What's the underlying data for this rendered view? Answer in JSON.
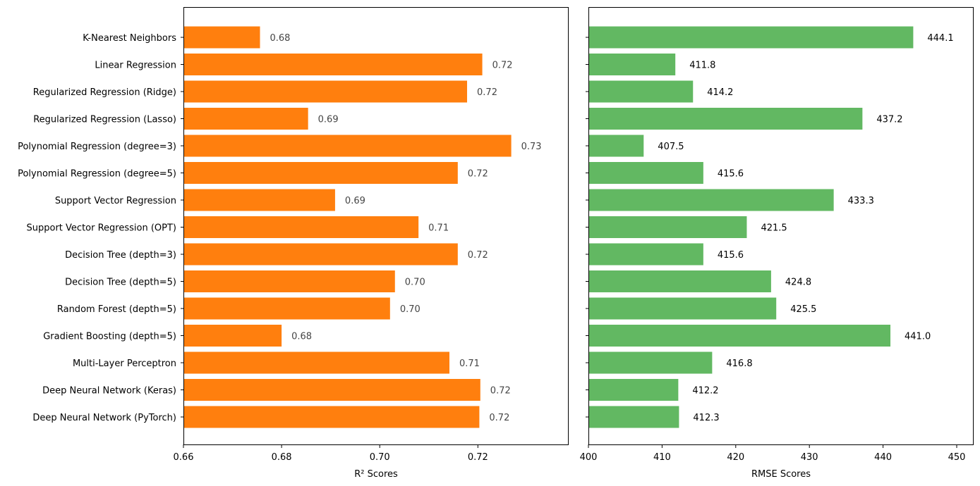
{
  "chart_data": [
    {
      "type": "bar",
      "orientation": "horizontal",
      "xlabel": "R² Scores",
      "ylabel": "",
      "xlim": [
        0.66,
        0.7385
      ],
      "xticks": [
        {
          "value": 0.66,
          "label": "0.66"
        },
        {
          "value": 0.68,
          "label": "0.68"
        },
        {
          "value": 0.7,
          "label": "0.70"
        },
        {
          "value": 0.72,
          "label": "0.72"
        }
      ],
      "bar_color": "#ff7f0e",
      "label_color": "#444444",
      "categories": [
        "K-Nearest Neighbors",
        "Linear Regression",
        "Regularized Regression (Ridge)",
        "Regularized Regression (Lasso)",
        "Polynomial Regression (degree=3)",
        "Polynomial Regression (degree=5)",
        "Support Vector Regression",
        "Support Vector Regression (OPT)",
        "Decision Tree (depth=3)",
        "Decision Tree (depth=5)",
        "Random Forest (depth=5)",
        "Gradient Boosting (depth=5)",
        "Multi-Layer Perceptron",
        "Deep Neural Network (Keras)",
        "Deep Neural Network (PyTorch)"
      ],
      "values": [
        0.6756,
        0.7209,
        0.7178,
        0.6854,
        0.7268,
        0.7159,
        0.6909,
        0.7079,
        0.7159,
        0.7031,
        0.7021,
        0.68,
        0.7142,
        0.7205,
        0.7203
      ],
      "data_labels": [
        "0.68",
        "0.72",
        "0.72",
        "0.69",
        "0.73",
        "0.72",
        "0.69",
        "0.71",
        "0.72",
        "0.70",
        "0.70",
        "0.68",
        "0.71",
        "0.72",
        "0.72"
      ]
    },
    {
      "type": "bar",
      "orientation": "horizontal",
      "xlabel": "RMSE Scores",
      "ylabel": "",
      "xlim": [
        400,
        452.3
      ],
      "xticks": [
        {
          "value": 400,
          "label": "400"
        },
        {
          "value": 410,
          "label": "410"
        },
        {
          "value": 420,
          "label": "420"
        },
        {
          "value": 430,
          "label": "430"
        },
        {
          "value": 440,
          "label": "440"
        },
        {
          "value": 450,
          "label": "450"
        }
      ],
      "bar_color": "#62b862",
      "label_color": "#000000",
      "categories": [
        "K-Nearest Neighbors",
        "Linear Regression",
        "Regularized Regression (Ridge)",
        "Regularized Regression (Lasso)",
        "Polynomial Regression (degree=3)",
        "Polynomial Regression (degree=5)",
        "Support Vector Regression",
        "Support Vector Regression (OPT)",
        "Decision Tree (depth=3)",
        "Decision Tree (depth=5)",
        "Random Forest (depth=5)",
        "Gradient Boosting (depth=5)",
        "Multi-Layer Perceptron",
        "Deep Neural Network (Keras)",
        "Deep Neural Network (PyTorch)"
      ],
      "values": [
        444.1,
        411.8,
        414.2,
        437.2,
        407.5,
        415.6,
        433.3,
        421.5,
        415.6,
        424.8,
        425.5,
        441.0,
        416.8,
        412.2,
        412.3
      ],
      "data_labels": [
        "444.1",
        "411.8",
        "414.2",
        "437.2",
        "407.5",
        "415.6",
        "433.3",
        "421.5",
        "415.6",
        "424.8",
        "425.5",
        "441.0",
        "416.8",
        "412.2",
        "412.3"
      ]
    }
  ]
}
